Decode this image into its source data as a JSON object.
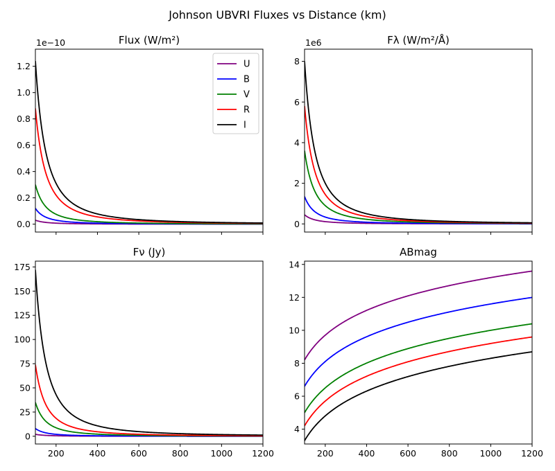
{
  "suptitle": "Johnson UBVRI Fluxes vs Distance (km)",
  "series_colors": {
    "U": "#800080",
    "B": "#0000ff",
    "V": "#008000",
    "R": "#ff0000",
    "I": "#000000"
  },
  "chart_data": [
    {
      "type": "line",
      "title": "Flux (W/m²)",
      "xlim": [
        100,
        1200
      ],
      "ylim": [
        -0.06,
        1.33
      ],
      "y_offset_label": "1e−10",
      "xtick_labels_visible": false,
      "xticks": [
        200,
        400,
        600,
        800,
        1000,
        1200
      ],
      "yticks": [
        0.0,
        0.2,
        0.4,
        0.6,
        0.8,
        1.0,
        1.2
      ],
      "ytick_labels": [
        "0.0",
        "0.2",
        "0.4",
        "0.6",
        "0.8",
        "1.0",
        "1.2"
      ],
      "scaling": "inverse_square",
      "legend": "top-right",
      "series": [
        {
          "name": "U",
          "value_at_100km": 0.03
        },
        {
          "name": "B",
          "value_at_100km": 0.12
        },
        {
          "name": "V",
          "value_at_100km": 0.3
        },
        {
          "name": "R",
          "value_at_100km": 0.88
        },
        {
          "name": "I",
          "value_at_100km": 1.24
        }
      ]
    },
    {
      "type": "line",
      "title": "Fλ (W/m²/Å)",
      "xlim": [
        100,
        1200
      ],
      "ylim": [
        -0.4,
        8.6
      ],
      "y_offset_label": "1e6",
      "xtick_labels_visible": false,
      "xticks": [
        200,
        400,
        600,
        800,
        1000,
        1200
      ],
      "yticks": [
        0,
        2,
        4,
        6,
        8
      ],
      "ytick_labels": [
        "0",
        "2",
        "4",
        "6",
        "8"
      ],
      "scaling": "inverse_square",
      "series": [
        {
          "name": "U",
          "value_at_100km": 0.45
        },
        {
          "name": "B",
          "value_at_100km": 1.35
        },
        {
          "name": "V",
          "value_at_100km": 3.6
        },
        {
          "name": "R",
          "value_at_100km": 5.8
        },
        {
          "name": "I",
          "value_at_100km": 8.0
        }
      ]
    },
    {
      "type": "line",
      "title": "Fν (Jy)",
      "xlim": [
        100,
        1200
      ],
      "ylim": [
        -8,
        181
      ],
      "xtick_labels_visible": true,
      "xticks": [
        200,
        400,
        600,
        800,
        1000,
        1200
      ],
      "xtick_labels": [
        "200",
        "400",
        "600",
        "800",
        "1000",
        "1200"
      ],
      "yticks": [
        0,
        25,
        50,
        75,
        100,
        125,
        150,
        175
      ],
      "ytick_labels": [
        "0",
        "25",
        "50",
        "75",
        "100",
        "125",
        "150",
        "175"
      ],
      "scaling": "inverse_square",
      "series": [
        {
          "name": "U",
          "value_at_100km": 2.0
        },
        {
          "name": "B",
          "value_at_100km": 8.0
        },
        {
          "name": "V",
          "value_at_100km": 35
        },
        {
          "name": "R",
          "value_at_100km": 74
        },
        {
          "name": "I",
          "value_at_100km": 172
        }
      ]
    },
    {
      "type": "line",
      "title": "ABmag",
      "xlim": [
        100,
        1200
      ],
      "ylim": [
        3.1,
        14.2
      ],
      "xtick_labels_visible": true,
      "xticks": [
        200,
        400,
        600,
        800,
        1000,
        1200
      ],
      "xtick_labels": [
        "200",
        "400",
        "600",
        "800",
        "1000",
        "1200"
      ],
      "yticks": [
        4,
        6,
        8,
        10,
        12,
        14
      ],
      "ytick_labels": [
        "4",
        "6",
        "8",
        "10",
        "12",
        "14"
      ],
      "scaling": "magnitude_5log10",
      "series": [
        {
          "name": "U",
          "value_at_100km": 8.2
        },
        {
          "name": "B",
          "value_at_100km": 6.6
        },
        {
          "name": "V",
          "value_at_100km": 5.0
        },
        {
          "name": "R",
          "value_at_100km": 4.2
        },
        {
          "name": "I",
          "value_at_100km": 3.3
        }
      ]
    }
  ]
}
